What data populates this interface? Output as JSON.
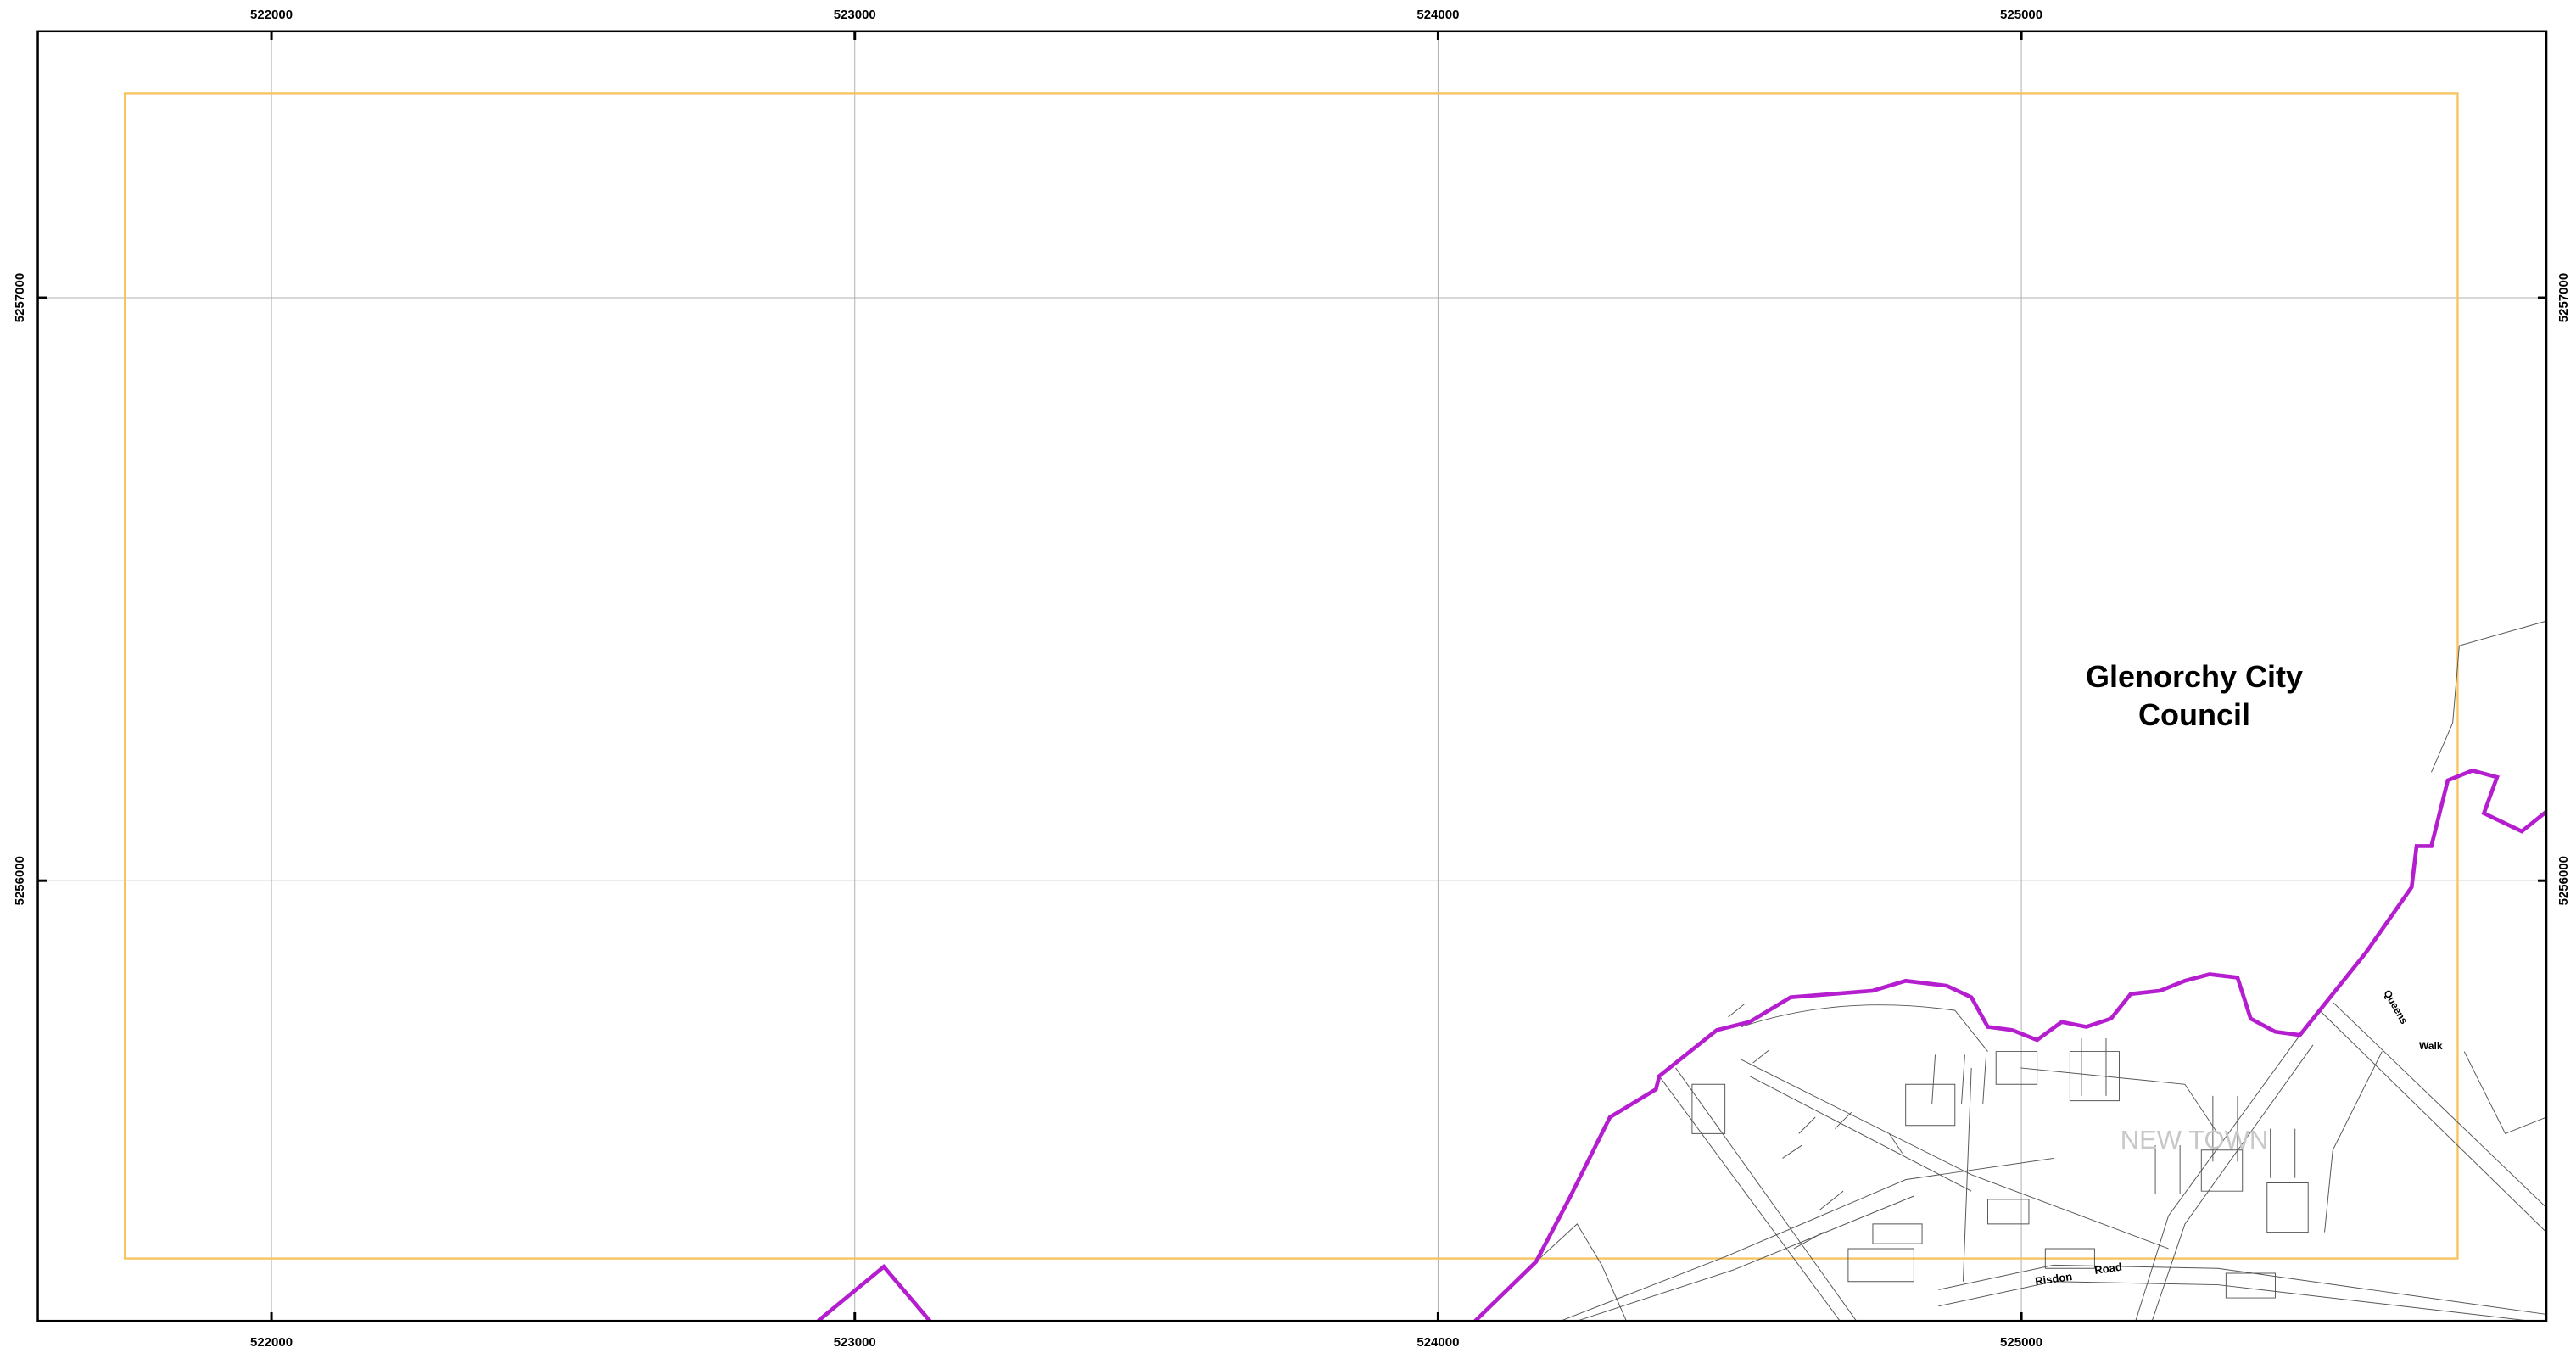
{
  "map": {
    "xlim": [
      521600,
      525900
    ],
    "ylim": [
      5255245,
      5257457
    ],
    "eastings": [
      522000,
      523000,
      524000,
      525000
    ],
    "northings": [
      5256000,
      5257000
    ],
    "grid": true,
    "council_label": [
      "Glenorchy City",
      "Council"
    ],
    "suburb_label": "NEW TOWN",
    "street_labels": [
      "Queens",
      "Walk",
      "Risdon",
      "Road"
    ]
  }
}
